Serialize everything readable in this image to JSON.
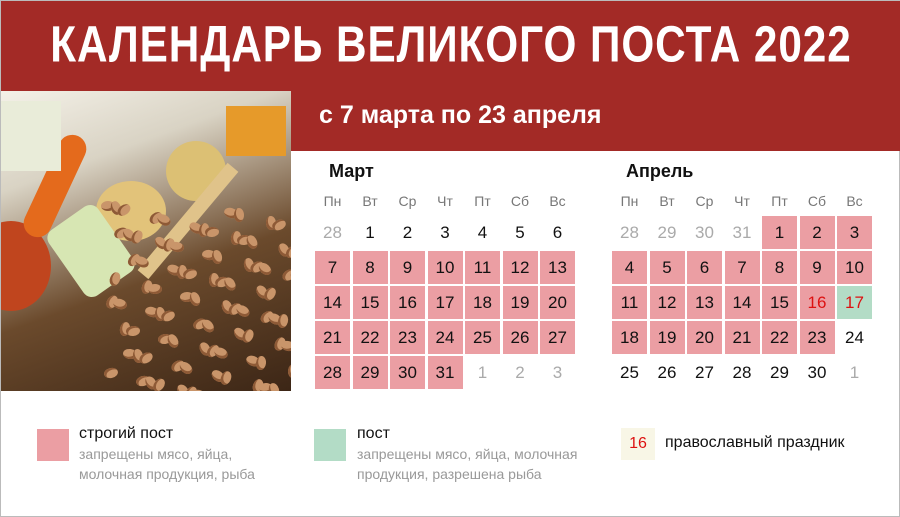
{
  "title": "КАЛЕНДАРЬ ВЕЛИКОГО ПОСТА 2022",
  "subtitle": "с 7 марта по 23 апреля",
  "colors": {
    "header": "#a32a26",
    "strict": "#eb9ea3",
    "lent": "#b3dcc6",
    "holiday": "#dd1111"
  },
  "weekdays": [
    "Пн",
    "Вт",
    "Ср",
    "Чт",
    "Пт",
    "Сб",
    "Вс"
  ],
  "months": [
    {
      "name": "Март",
      "weeks": [
        [
          [
            "28",
            "other"
          ],
          [
            "1",
            ""
          ],
          [
            "2",
            ""
          ],
          [
            "3",
            ""
          ],
          [
            "4",
            ""
          ],
          [
            "5",
            ""
          ],
          [
            "6",
            ""
          ]
        ],
        [
          [
            "7",
            "strict"
          ],
          [
            "8",
            "strict"
          ],
          [
            "9",
            "strict"
          ],
          [
            "10",
            "strict"
          ],
          [
            "11",
            "strict"
          ],
          [
            "12",
            "strict"
          ],
          [
            "13",
            "strict"
          ]
        ],
        [
          [
            "14",
            "strict"
          ],
          [
            "15",
            "strict"
          ],
          [
            "16",
            "strict"
          ],
          [
            "17",
            "strict"
          ],
          [
            "18",
            "strict"
          ],
          [
            "19",
            "strict"
          ],
          [
            "20",
            "strict"
          ]
        ],
        [
          [
            "21",
            "strict"
          ],
          [
            "22",
            "strict"
          ],
          [
            "23",
            "strict"
          ],
          [
            "24",
            "strict"
          ],
          [
            "25",
            "strict"
          ],
          [
            "26",
            "strict"
          ],
          [
            "27",
            "strict"
          ]
        ],
        [
          [
            "28",
            "strict"
          ],
          [
            "29",
            "strict"
          ],
          [
            "30",
            "strict"
          ],
          [
            "31",
            "strict"
          ],
          [
            "1",
            "other"
          ],
          [
            "2",
            "other"
          ],
          [
            "3",
            "other"
          ]
        ]
      ]
    },
    {
      "name": "Апрель",
      "weeks": [
        [
          [
            "28",
            "other"
          ],
          [
            "29",
            "other"
          ],
          [
            "30",
            "other"
          ],
          [
            "31",
            "other"
          ],
          [
            "1",
            "strict"
          ],
          [
            "2",
            "strict"
          ],
          [
            "3",
            "strict"
          ]
        ],
        [
          [
            "4",
            "strict"
          ],
          [
            "5",
            "strict"
          ],
          [
            "6",
            "strict"
          ],
          [
            "7",
            "strict"
          ],
          [
            "8",
            "strict"
          ],
          [
            "9",
            "strict"
          ],
          [
            "10",
            "strict"
          ]
        ],
        [
          [
            "11",
            "strict"
          ],
          [
            "12",
            "strict"
          ],
          [
            "13",
            "strict"
          ],
          [
            "14",
            "strict"
          ],
          [
            "15",
            "strict"
          ],
          [
            "16",
            "strict holiday"
          ],
          [
            "17",
            "lent holiday"
          ]
        ],
        [
          [
            "18",
            "strict"
          ],
          [
            "19",
            "strict"
          ],
          [
            "20",
            "strict"
          ],
          [
            "21",
            "strict"
          ],
          [
            "22",
            "strict"
          ],
          [
            "23",
            "strict"
          ],
          [
            "24",
            ""
          ]
        ],
        [
          [
            "25",
            ""
          ],
          [
            "26",
            ""
          ],
          [
            "27",
            ""
          ],
          [
            "28",
            ""
          ],
          [
            "29",
            ""
          ],
          [
            "30",
            ""
          ],
          [
            "1",
            "other"
          ]
        ]
      ]
    }
  ],
  "legend": {
    "strict": {
      "title": "строгий пост",
      "desc": "запрещены мясо, яйца, молочная продукция, рыба"
    },
    "lent": {
      "title": "пост",
      "desc": "запрещены мясо, яйца, молочная продукция, разрешена рыба"
    },
    "holiday": {
      "sample": "16",
      "title": "православный праздник"
    }
  }
}
